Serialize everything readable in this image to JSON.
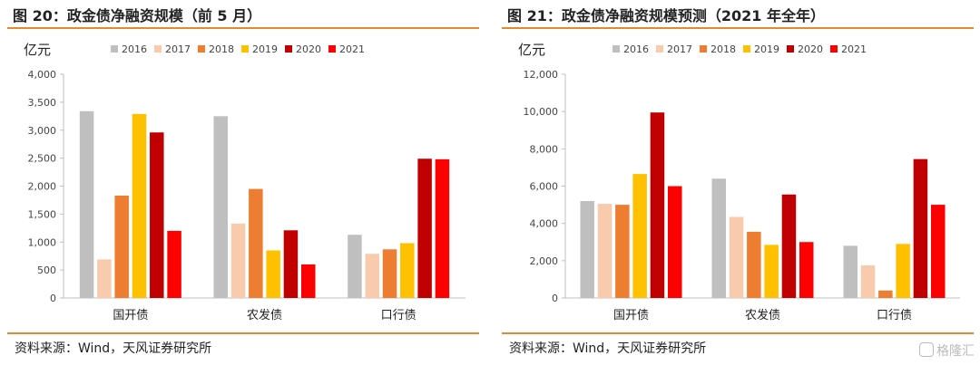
{
  "legend_years": [
    "2016",
    "2017",
    "2018",
    "2019",
    "2020",
    "2021"
  ],
  "series_colors": [
    "#bfbfbf",
    "#f8cbad",
    "#ed7d31",
    "#ffc000",
    "#c00000",
    "#ff0000"
  ],
  "charts": [
    {
      "title": "图 20：政金债净融资规模（前 5 月）",
      "source": "资料来源：Wind，天风证券研究所",
      "unit": "亿元"
    },
    {
      "title": "图 21：政金债净融资规模预测（2021 年全年）",
      "source": "资料来源：Wind，天风证券研究所",
      "unit": "亿元"
    }
  ],
  "chart_data": [
    {
      "type": "bar",
      "title": "图 20：政金债净融资规模（前 5 月）",
      "ylabel": "亿元",
      "categories": [
        "国开债",
        "农发债",
        "口行债"
      ],
      "ylim": [
        0,
        4000
      ],
      "yticks": [
        0,
        500,
        1000,
        1500,
        2000,
        2500,
        3000,
        3500,
        4000
      ],
      "ytick_labels": [
        "0",
        "500",
        "1,000",
        "1,500",
        "2,000",
        "2,500",
        "3,000",
        "3,500",
        "4,000"
      ],
      "legend": "top",
      "grid": false,
      "series": [
        {
          "name": "2016",
          "values": [
            3340,
            3250,
            1130
          ]
        },
        {
          "name": "2017",
          "values": [
            690,
            1330,
            790
          ]
        },
        {
          "name": "2018",
          "values": [
            1830,
            1950,
            870
          ]
        },
        {
          "name": "2019",
          "values": [
            3290,
            850,
            980
          ]
        },
        {
          "name": "2020",
          "values": [
            2960,
            1210,
            2490
          ]
        },
        {
          "name": "2021",
          "values": [
            1200,
            600,
            2480
          ]
        }
      ]
    },
    {
      "type": "bar",
      "title": "图 21：政金债净融资规模预测（2021 年全年）",
      "ylabel": "亿元",
      "categories": [
        "国开债",
        "农发债",
        "口行债"
      ],
      "ylim": [
        0,
        12000
      ],
      "yticks": [
        0,
        2000,
        4000,
        6000,
        8000,
        10000,
        12000
      ],
      "ytick_labels": [
        "0",
        "2,000",
        "4,000",
        "6,000",
        "8,000",
        "10,000",
        "12,000"
      ],
      "legend": "top",
      "grid": false,
      "series": [
        {
          "name": "2016",
          "values": [
            5200,
            6400,
            2800
          ]
        },
        {
          "name": "2017",
          "values": [
            5050,
            4350,
            1750
          ]
        },
        {
          "name": "2018",
          "values": [
            5000,
            3550,
            400
          ]
        },
        {
          "name": "2019",
          "values": [
            6650,
            2850,
            2900
          ]
        },
        {
          "name": "2020",
          "values": [
            9950,
            5550,
            7450
          ]
        },
        {
          "name": "2021",
          "values": [
            6000,
            3000,
            5000
          ]
        }
      ]
    }
  ],
  "watermark": {
    "text": "格隆汇",
    "icon": "gelonghui-logo-icon"
  }
}
